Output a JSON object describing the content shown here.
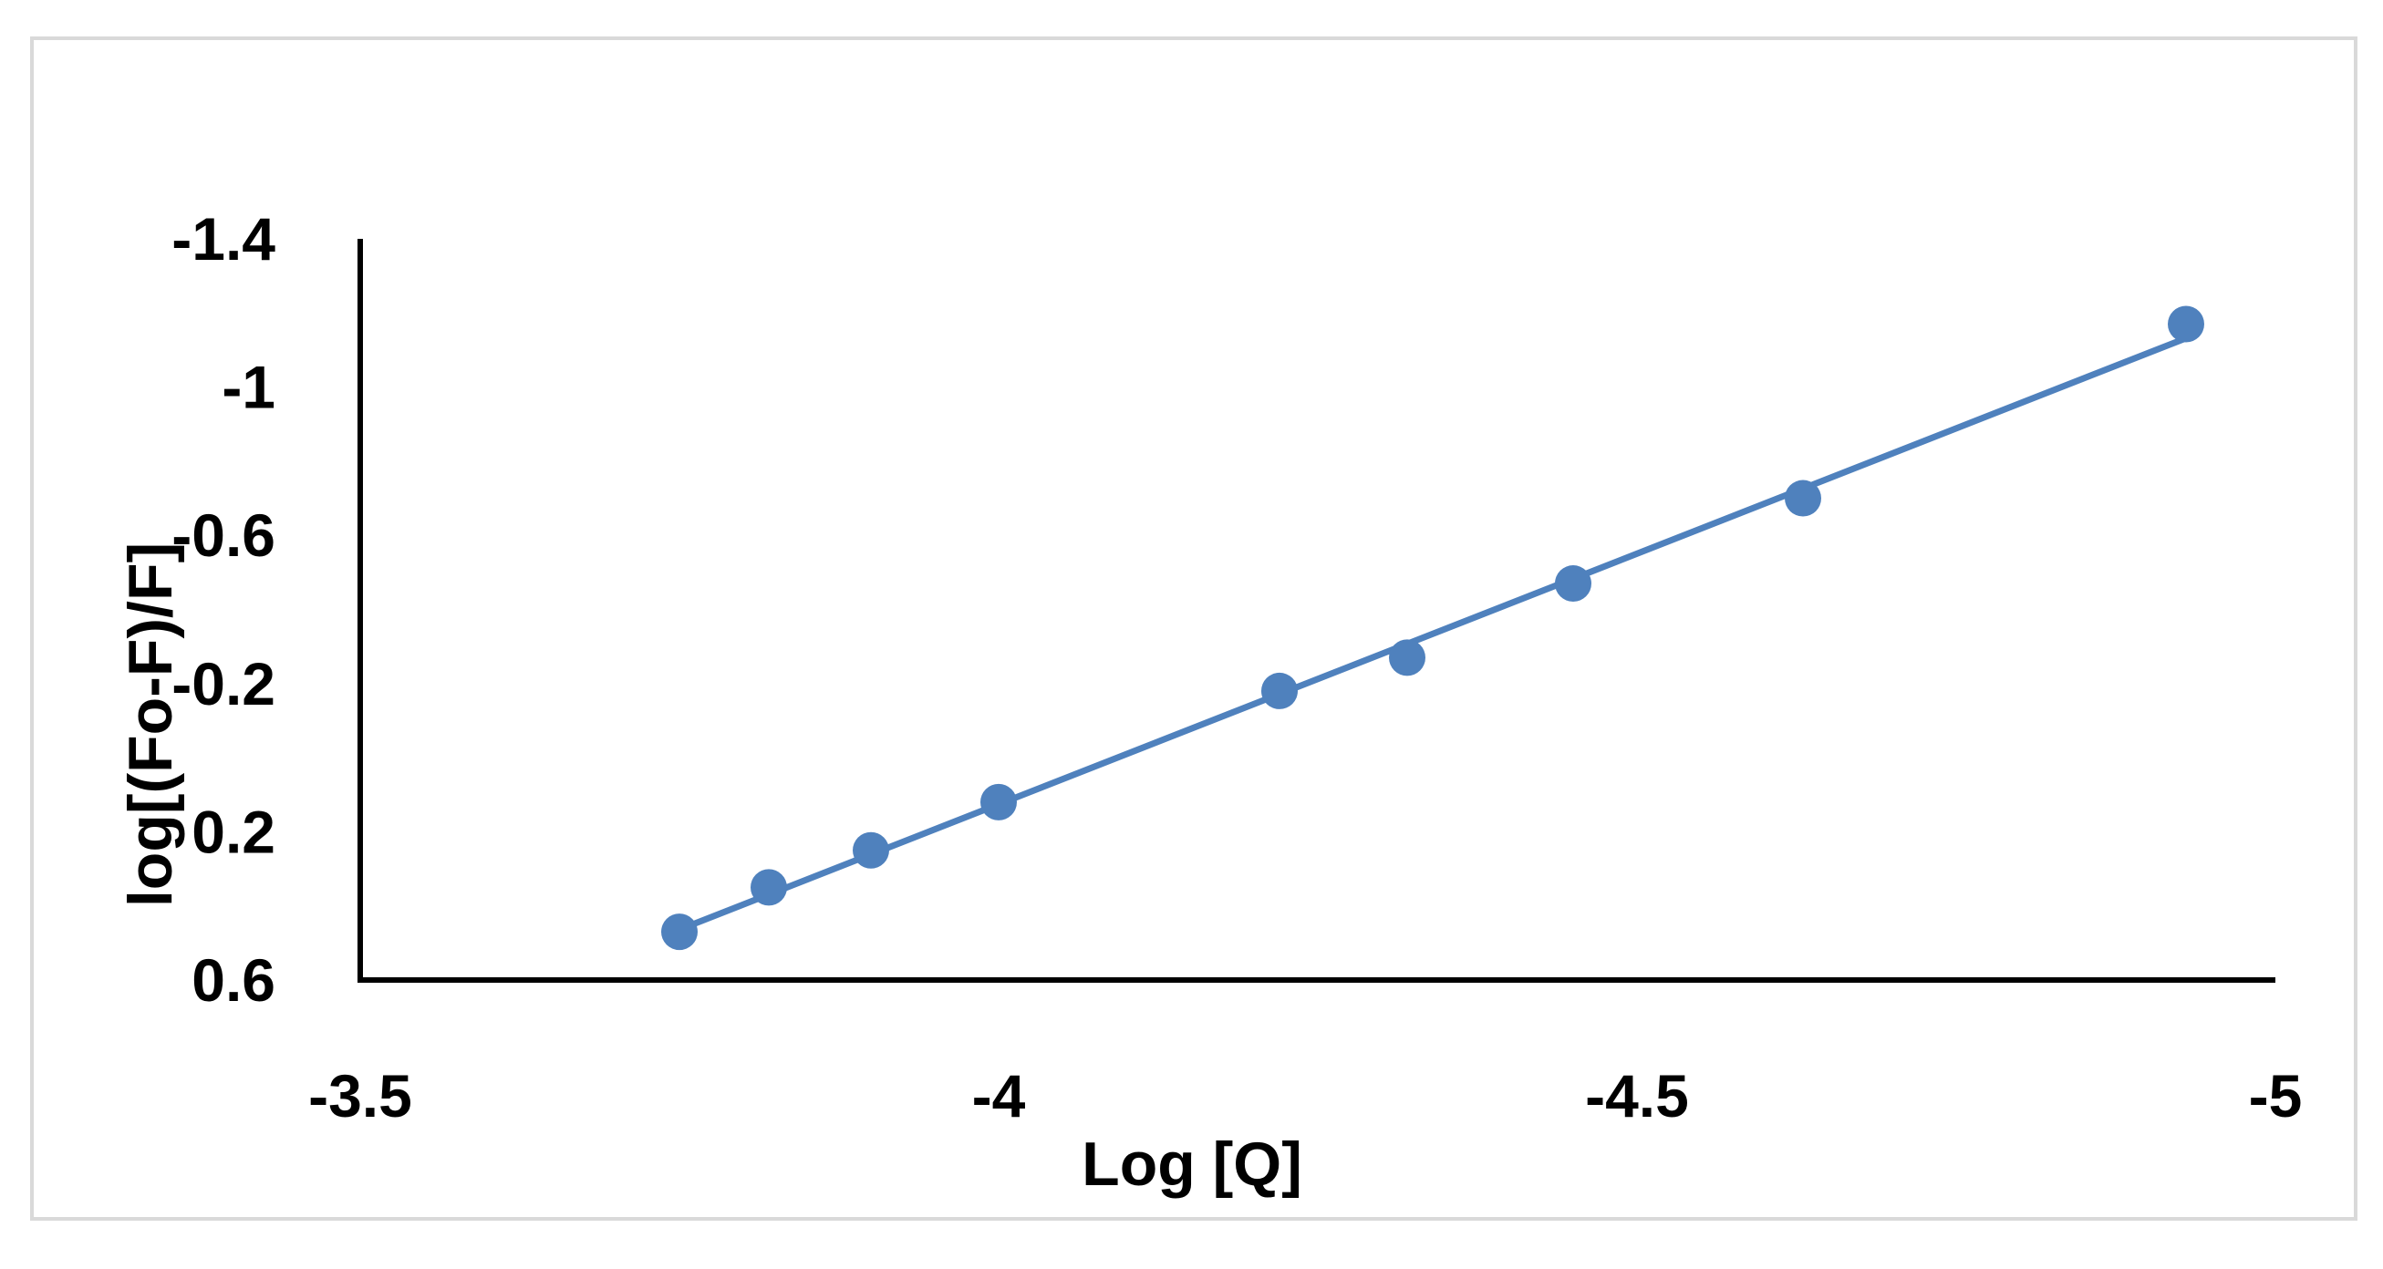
{
  "chart_data": {
    "type": "scatter",
    "xlabel": "Log [Q]",
    "ylabel": "log[(Fo-F)/F]",
    "xlim": [
      -3.5,
      -5
    ],
    "ylim": [
      0.6,
      -1.4
    ],
    "x_ticks": [
      -3.5,
      -4,
      -4.5,
      -5
    ],
    "x_tick_labels": [
      "-3.5",
      "-4",
      "-4.5",
      "-5"
    ],
    "y_ticks": [
      0.6,
      0.2,
      -0.2,
      -0.6,
      -1,
      -1.4
    ],
    "y_tick_labels": [
      "0.6",
      "0.2",
      "-0.2",
      "-0.6",
      "-1",
      "-1.4"
    ],
    "series": [
      {
        "x": [
          -3.75,
          -3.82,
          -3.9,
          -4.0,
          -4.22,
          -4.32,
          -4.45,
          -4.63,
          -4.93
        ],
        "y": [
          0.47,
          0.35,
          0.25,
          0.12,
          -0.18,
          -0.27,
          -0.47,
          -0.7,
          -1.17
        ],
        "color": "#4f81bd",
        "marker": "circle",
        "trendline": "linear"
      }
    ],
    "grid": false,
    "legend": "none"
  }
}
